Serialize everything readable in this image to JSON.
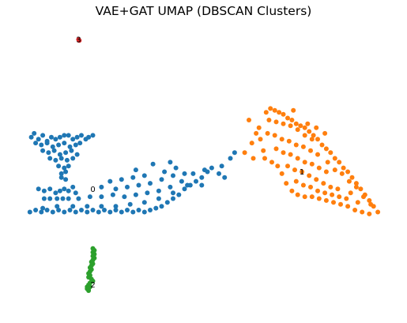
{
  "chart_data": {
    "type": "scatter",
    "title": "VAE+GAT UMAP (DBSCAN Clusters)",
    "xlabel": "",
    "ylabel": "",
    "axes_visible": false,
    "grid": false,
    "legend": "none",
    "series": [
      {
        "cluster": "0",
        "label": "0",
        "color": "#1f77b4",
        "label_pos": [
          2.0,
          6.0
        ],
        "points": [
          [
            -2.3,
            8.7
          ],
          [
            -2.1,
            8.9
          ],
          [
            -1.8,
            8.6
          ],
          [
            -1.5,
            8.8
          ],
          [
            -1.2,
            8.5
          ],
          [
            -0.9,
            8.7
          ],
          [
            -0.6,
            8.6
          ],
          [
            -0.3,
            8.7
          ],
          [
            -0.0,
            8.8
          ],
          [
            0.3,
            8.8
          ],
          [
            0.6,
            8.6
          ],
          [
            0.9,
            8.7
          ],
          [
            1.2,
            8.8
          ],
          [
            1.5,
            8.6
          ],
          [
            1.7,
            8.7
          ],
          [
            2.0,
            8.8
          ],
          [
            -2.0,
            8.4
          ],
          [
            -1.6,
            8.3
          ],
          [
            -1.2,
            8.4
          ],
          [
            -0.8,
            8.2
          ],
          [
            -0.4,
            8.3
          ],
          [
            -0.0,
            8.4
          ],
          [
            0.4,
            8.2
          ],
          [
            0.8,
            8.3
          ],
          [
            1.1,
            8.4
          ],
          [
            -1.5,
            8.0
          ],
          [
            -1.1,
            7.9
          ],
          [
            -0.7,
            8.0
          ],
          [
            -0.3,
            7.8
          ],
          [
            0.1,
            7.9
          ],
          [
            0.5,
            8.0
          ],
          [
            0.9,
            7.8
          ],
          [
            -1.0,
            7.6
          ],
          [
            -0.6,
            7.5
          ],
          [
            -0.2,
            7.6
          ],
          [
            0.2,
            7.5
          ],
          [
            0.6,
            7.6
          ],
          [
            -0.4,
            7.2
          ],
          [
            0.0,
            7.1
          ],
          [
            0.3,
            7.2
          ],
          [
            -0.2,
            6.8
          ],
          [
            0.1,
            6.9
          ],
          [
            -0.2,
            6.6
          ],
          [
            0.1,
            6.5
          ],
          [
            -1.8,
            6.0
          ],
          [
            -1.4,
            5.9
          ],
          [
            -1.0,
            6.0
          ],
          [
            -0.6,
            5.8
          ],
          [
            -0.3,
            5.9
          ],
          [
            0.0,
            6.0
          ],
          [
            0.3,
            5.9
          ],
          [
            0.6,
            6.1
          ],
          [
            0.8,
            5.8
          ],
          [
            -1.4,
            5.5
          ],
          [
            -1.0,
            5.5
          ],
          [
            -0.5,
            5.5
          ],
          [
            -0.1,
            5.5
          ],
          [
            0.3,
            5.5
          ],
          [
            -2.4,
            4.8
          ],
          [
            -2.0,
            4.9
          ],
          [
            -1.6,
            4.8
          ],
          [
            -1.2,
            4.9
          ],
          [
            -0.8,
            4.8
          ],
          [
            -0.4,
            4.9
          ],
          [
            0.0,
            4.8
          ],
          [
            0.4,
            4.9
          ],
          [
            0.8,
            4.8
          ],
          [
            1.2,
            4.9
          ],
          [
            1.6,
            4.8
          ],
          [
            2.0,
            4.9
          ],
          [
            2.4,
            4.8
          ],
          [
            2.8,
            4.9
          ],
          [
            3.2,
            4.8
          ],
          [
            3.6,
            4.9
          ],
          [
            4.0,
            4.8
          ],
          [
            4.4,
            4.9
          ],
          [
            4.8,
            4.8
          ],
          [
            5.2,
            4.9
          ],
          [
            5.6,
            4.8
          ],
          [
            6.0,
            4.9
          ],
          [
            6.4,
            5.0
          ],
          [
            6.8,
            5.1
          ],
          [
            7.2,
            5.3
          ],
          [
            7.6,
            5.5
          ],
          [
            8.0,
            5.7
          ],
          [
            8.4,
            6.0
          ],
          [
            8.8,
            6.2
          ],
          [
            9.2,
            6.4
          ],
          [
            9.6,
            6.6
          ],
          [
            10.0,
            6.9
          ],
          [
            10.3,
            7.1
          ],
          [
            -1.5,
            5.0
          ],
          [
            -0.5,
            5.1
          ],
          [
            0.6,
            5.1
          ],
          [
            1.6,
            5.1
          ],
          [
            2.6,
            5.1
          ],
          [
            3.6,
            5.1
          ],
          [
            4.6,
            5.2
          ],
          [
            5.6,
            5.3
          ],
          [
            6.6,
            5.5
          ],
          [
            7.6,
            5.8
          ],
          [
            8.6,
            6.2
          ],
          [
            1.0,
            5.5
          ],
          [
            1.8,
            5.6
          ],
          [
            2.6,
            5.6
          ],
          [
            3.4,
            5.7
          ],
          [
            4.2,
            5.6
          ],
          [
            5.0,
            5.7
          ],
          [
            5.8,
            5.8
          ],
          [
            6.6,
            5.9
          ],
          [
            7.4,
            6.1
          ],
          [
            8.2,
            6.4
          ],
          [
            3.6,
            6.0
          ],
          [
            4.4,
            6.1
          ],
          [
            5.2,
            6.2
          ],
          [
            6.0,
            6.3
          ],
          [
            6.8,
            6.5
          ],
          [
            7.6,
            6.7
          ],
          [
            8.4,
            6.8
          ],
          [
            4.0,
            6.5
          ],
          [
            4.8,
            6.6
          ],
          [
            5.6,
            6.7
          ],
          [
            7.0,
            6.9
          ],
          [
            7.8,
            7.1
          ],
          [
            9.0,
            6.8
          ],
          [
            9.8,
            7.0
          ],
          [
            9.6,
            6.2
          ],
          [
            5.0,
            7.0
          ],
          [
            3.2,
            6.4
          ],
          [
            2.6,
            6.1
          ],
          [
            10.8,
            6.8
          ],
          [
            11.0,
            7.2
          ],
          [
            11.2,
            6.6
          ],
          [
            11.6,
            7.6
          ],
          [
            11.9,
            7.9
          ],
          [
            6.2,
            7.3
          ],
          [
            7.4,
            7.4
          ]
        ]
      },
      {
        "cluster": "1",
        "label": "1",
        "color": "#ff7f0e",
        "label_pos": [
          16.6,
          6.9
        ],
        "points": [
          [
            14.1,
            10.0
          ],
          [
            14.4,
            10.2
          ],
          [
            14.7,
            10.1
          ],
          [
            15.0,
            10.0
          ],
          [
            15.3,
            9.9
          ],
          [
            15.6,
            9.7
          ],
          [
            15.9,
            9.6
          ],
          [
            16.2,
            9.4
          ],
          [
            16.5,
            9.3
          ],
          [
            16.8,
            9.2
          ],
          [
            17.1,
            9.0
          ],
          [
            17.4,
            8.8
          ],
          [
            17.7,
            8.6
          ],
          [
            18.0,
            8.3
          ],
          [
            18.3,
            8.1
          ],
          [
            18.6,
            7.9
          ],
          [
            18.9,
            7.6
          ],
          [
            19.2,
            7.4
          ],
          [
            19.5,
            7.1
          ],
          [
            19.8,
            6.9
          ],
          [
            20.1,
            6.6
          ],
          [
            20.4,
            6.3
          ],
          [
            20.7,
            6.0
          ],
          [
            21.0,
            5.7
          ],
          [
            21.3,
            5.4
          ],
          [
            21.6,
            5.1
          ],
          [
            21.9,
            4.8
          ],
          [
            13.6,
            9.2
          ],
          [
            13.7,
            8.6
          ],
          [
            13.9,
            8.0
          ],
          [
            14.0,
            7.6
          ],
          [
            14.5,
            7.4
          ],
          [
            14.9,
            7.2
          ],
          [
            15.2,
            6.8
          ],
          [
            15.5,
            6.3
          ],
          [
            15.9,
            5.9
          ],
          [
            16.3,
            5.7
          ],
          [
            16.8,
            5.6
          ],
          [
            17.3,
            5.6
          ],
          [
            17.8,
            5.5
          ],
          [
            18.3,
            5.4
          ],
          [
            18.8,
            5.3
          ],
          [
            19.3,
            5.2
          ],
          [
            19.8,
            5.1
          ],
          [
            20.3,
            4.9
          ],
          [
            20.8,
            4.8
          ],
          [
            21.3,
            4.7
          ],
          [
            14.3,
            9.6
          ],
          [
            14.8,
            9.5
          ],
          [
            15.3,
            9.4
          ],
          [
            15.8,
            9.3
          ],
          [
            16.3,
            9.1
          ],
          [
            16.8,
            8.8
          ],
          [
            17.3,
            8.6
          ],
          [
            14.2,
            8.9
          ],
          [
            14.7,
            8.8
          ],
          [
            15.2,
            8.6
          ],
          [
            15.7,
            8.5
          ],
          [
            16.2,
            8.3
          ],
          [
            16.7,
            8.2
          ],
          [
            17.2,
            8.0
          ],
          [
            17.7,
            7.8
          ],
          [
            14.8,
            8.1
          ],
          [
            15.3,
            7.9
          ],
          [
            15.8,
            7.8
          ],
          [
            16.3,
            7.6
          ],
          [
            16.8,
            7.4
          ],
          [
            17.3,
            7.3
          ],
          [
            17.8,
            7.1
          ],
          [
            18.3,
            6.9
          ],
          [
            15.6,
            7.2
          ],
          [
            16.1,
            7.0
          ],
          [
            16.6,
            6.9
          ],
          [
            17.1,
            6.7
          ],
          [
            17.6,
            6.5
          ],
          [
            18.1,
            6.3
          ],
          [
            18.6,
            6.1
          ],
          [
            19.1,
            6.0
          ],
          [
            16.2,
            6.4
          ],
          [
            16.7,
            6.2
          ],
          [
            17.2,
            6.1
          ],
          [
            17.7,
            5.9
          ],
          [
            18.2,
            5.8
          ],
          [
            18.7,
            5.7
          ],
          [
            19.2,
            5.6
          ],
          [
            19.7,
            5.5
          ],
          [
            18.4,
            7.4
          ],
          [
            18.9,
            7.0
          ],
          [
            19.4,
            6.8
          ],
          [
            19.9,
            6.4
          ],
          [
            20.4,
            6.1
          ],
          [
            20.9,
            5.6
          ],
          [
            21.4,
            5.2
          ],
          [
            20.0,
            5.8
          ],
          [
            20.5,
            5.3
          ],
          [
            13.4,
            8.9
          ],
          [
            13.1,
            8.4
          ],
          [
            12.6,
            7.9
          ],
          [
            13.2,
            7.6
          ],
          [
            12.9,
            9.6
          ],
          [
            17.0,
            9.4
          ],
          [
            16.0,
            10.1
          ],
          [
            18.2,
            8.9
          ],
          [
            17.6,
            9.2
          ]
        ]
      },
      {
        "cluster": "2",
        "label": "2",
        "color": "#2ca02c",
        "label_pos": [
          2.0,
          1.0
        ],
        "points": [
          [
            2.0,
            2.9
          ],
          [
            2.1,
            2.8
          ],
          [
            2.0,
            2.7
          ],
          [
            2.1,
            2.6
          ],
          [
            2.0,
            2.5
          ],
          [
            2.1,
            2.4
          ],
          [
            2.0,
            2.3
          ],
          [
            1.9,
            2.2
          ],
          [
            2.0,
            2.1
          ],
          [
            1.9,
            2.0
          ],
          [
            1.8,
            1.9
          ],
          [
            1.9,
            1.8
          ],
          [
            1.8,
            1.7
          ],
          [
            1.7,
            1.6
          ],
          [
            1.8,
            1.5
          ],
          [
            1.7,
            1.4
          ],
          [
            1.9,
            1.3
          ],
          [
            2.0,
            1.2
          ],
          [
            1.8,
            1.1
          ],
          [
            1.7,
            1.0
          ],
          [
            1.6,
            0.9
          ],
          [
            1.7,
            0.8
          ],
          [
            1.8,
            0.9
          ],
          [
            1.6,
            0.8
          ],
          [
            1.7,
            0.7
          ]
        ]
      },
      {
        "cluster": "3",
        "label": "3",
        "color": "#d62728",
        "label_pos": [
          1.0,
          13.8
        ],
        "points": [
          [
            1.0,
            13.8
          ],
          [
            1.05,
            13.75
          ]
        ]
      }
    ]
  }
}
